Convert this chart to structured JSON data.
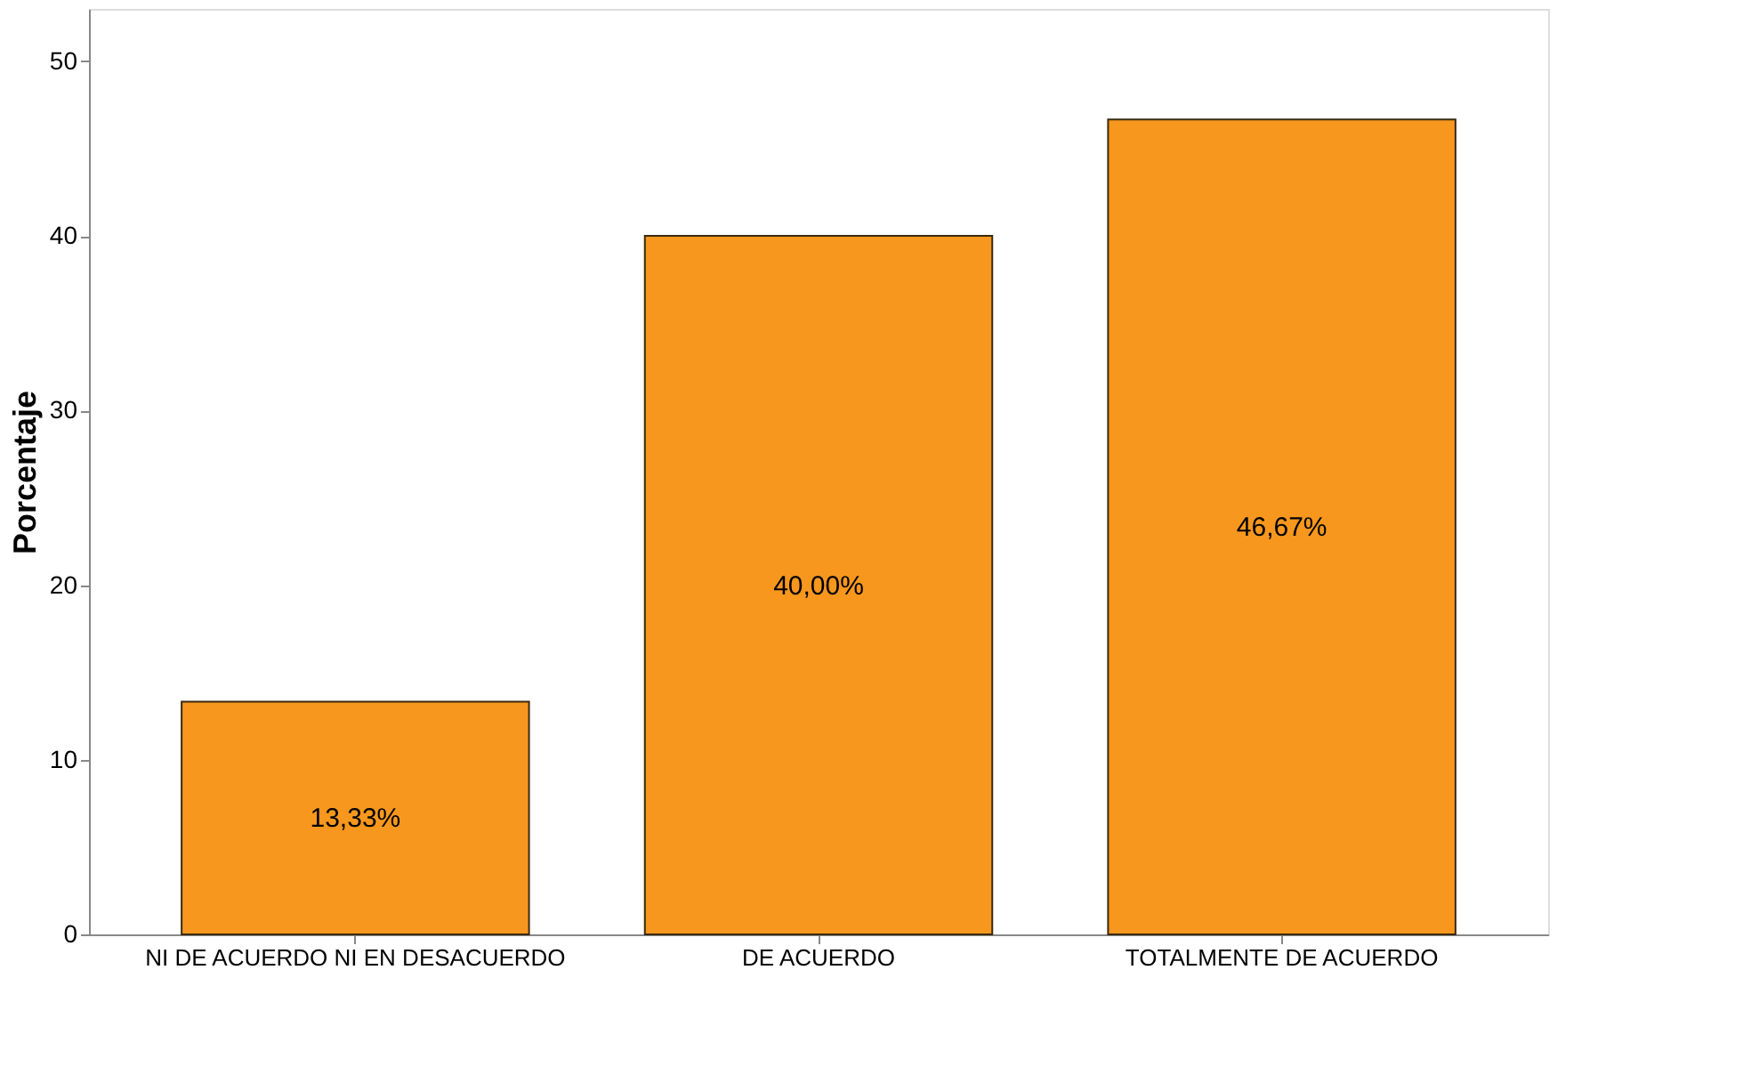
{
  "chart_data": {
    "type": "bar",
    "ylabel": "Porcentaje",
    "categories": [
      "NI DE ACUERDO NI EN DESACUERDO",
      "DE ACUERDO",
      "TOTALMENTE DE ACUERDO"
    ],
    "values": [
      13.33,
      40.0,
      46.67
    ],
    "value_labels": [
      "13,33%",
      "40,00%",
      "46,67%"
    ],
    "color": "#f7971e",
    "ylim": [
      0,
      53
    ],
    "yticks": [
      0,
      10,
      20,
      30,
      40,
      50
    ],
    "grid": false
  }
}
